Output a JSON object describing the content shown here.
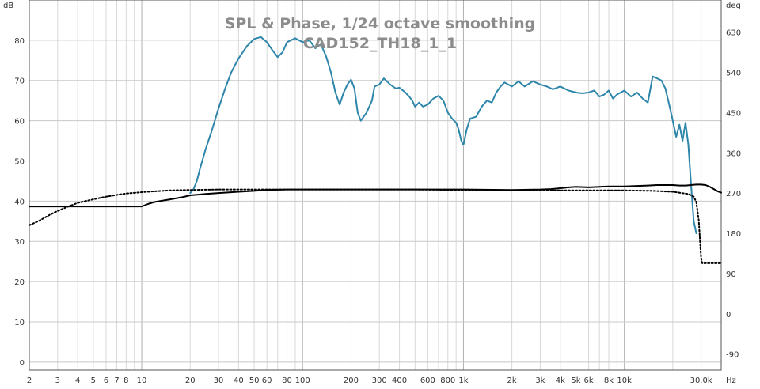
{
  "chart_data": {
    "type": "line",
    "title": "SPL & Phase, 1/24 octave smoothing",
    "subtitle": "CAD152_TH18_1_1",
    "left_unit": "dB",
    "right_unit": "deg",
    "x_unit_label": "Hz",
    "x_scale": "log",
    "xlim": [
      2,
      40000
    ],
    "ylim": [
      -2,
      90
    ],
    "ylim_right": [
      -126,
      702
    ],
    "grid": true,
    "x_ticks": [
      {
        "v": 2,
        "t": "2"
      },
      {
        "v": 3,
        "t": "3"
      },
      {
        "v": 4,
        "t": "4"
      },
      {
        "v": 5,
        "t": "5"
      },
      {
        "v": 6,
        "t": "6"
      },
      {
        "v": 7,
        "t": "7"
      },
      {
        "v": 8,
        "t": "8"
      },
      {
        "v": 10,
        "t": "10"
      },
      {
        "v": 20,
        "t": "20"
      },
      {
        "v": 30,
        "t": "30"
      },
      {
        "v": 40,
        "t": "40"
      },
      {
        "v": 50,
        "t": "50"
      },
      {
        "v": 60,
        "t": "60"
      },
      {
        "v": 80,
        "t": "80"
      },
      {
        "v": 100,
        "t": "100"
      },
      {
        "v": 200,
        "t": "200"
      },
      {
        "v": 300,
        "t": "300"
      },
      {
        "v": 400,
        "t": "400"
      },
      {
        "v": 600,
        "t": "600"
      },
      {
        "v": 800,
        "t": "800"
      },
      {
        "v": 1000,
        "t": "1k"
      },
      {
        "v": 2000,
        "t": "2k"
      },
      {
        "v": 3000,
        "t": "3k"
      },
      {
        "v": 4000,
        "t": "4k"
      },
      {
        "v": 5000,
        "t": "5k"
      },
      {
        "v": 6000,
        "t": "6k"
      },
      {
        "v": 8000,
        "t": "8k"
      },
      {
        "v": 10000,
        "t": "10k"
      },
      {
        "v": 30000,
        "t": "30.0k"
      }
    ],
    "y_ticks_left": [
      0,
      10,
      20,
      30,
      40,
      50,
      60,
      70,
      80
    ],
    "y_ticks_right": [
      -90,
      0,
      90,
      180,
      270,
      360,
      450,
      540,
      630
    ],
    "series": [
      {
        "axis": "left",
        "color": "#2e86ab",
        "style": "solid",
        "points": [
          [
            20,
            42.0
          ],
          [
            21,
            43.0
          ],
          [
            22,
            45.0
          ],
          [
            23,
            48.0
          ],
          [
            25,
            53.0
          ],
          [
            27,
            57.0
          ],
          [
            30,
            63.0
          ],
          [
            33,
            68.0
          ],
          [
            36,
            72.0
          ],
          [
            40,
            75.5
          ],
          [
            45,
            78.5
          ],
          [
            50,
            80.3
          ],
          [
            55,
            80.8
          ],
          [
            60,
            79.5
          ],
          [
            65,
            77.5
          ],
          [
            70,
            75.8
          ],
          [
            75,
            77.0
          ],
          [
            80,
            79.5
          ],
          [
            90,
            80.5
          ],
          [
            100,
            79.5
          ],
          [
            110,
            80.0
          ],
          [
            120,
            78.0
          ],
          [
            130,
            79.0
          ],
          [
            140,
            76.0
          ],
          [
            150,
            72.0
          ],
          [
            160,
            67.0
          ],
          [
            170,
            64.0
          ],
          [
            180,
            67.0
          ],
          [
            190,
            69.0
          ],
          [
            200,
            70.2
          ],
          [
            210,
            68.0
          ],
          [
            220,
            62.0
          ],
          [
            230,
            60.0
          ],
          [
            250,
            62.0
          ],
          [
            270,
            65.0
          ],
          [
            280,
            68.5
          ],
          [
            300,
            69.0
          ],
          [
            320,
            70.5
          ],
          [
            350,
            69.0
          ],
          [
            380,
            68.0
          ],
          [
            400,
            68.2
          ],
          [
            430,
            67.2
          ],
          [
            460,
            66.0
          ],
          [
            480,
            65.0
          ],
          [
            500,
            63.5
          ],
          [
            530,
            64.5
          ],
          [
            560,
            63.5
          ],
          [
            600,
            64.0
          ],
          [
            650,
            65.5
          ],
          [
            700,
            66.2
          ],
          [
            750,
            65.0
          ],
          [
            800,
            62.0
          ],
          [
            850,
            60.5
          ],
          [
            900,
            59.5
          ],
          [
            930,
            58.0
          ],
          [
            970,
            55.0
          ],
          [
            1000,
            54.0
          ],
          [
            1050,
            58.0
          ],
          [
            1100,
            60.5
          ],
          [
            1200,
            61.0
          ],
          [
            1300,
            63.5
          ],
          [
            1400,
            65.0
          ],
          [
            1500,
            64.5
          ],
          [
            1600,
            67.0
          ],
          [
            1700,
            68.5
          ],
          [
            1800,
            69.5
          ],
          [
            2000,
            68.5
          ],
          [
            2200,
            69.8
          ],
          [
            2400,
            68.5
          ],
          [
            2700,
            69.8
          ],
          [
            3000,
            69.0
          ],
          [
            3300,
            68.5
          ],
          [
            3600,
            67.8
          ],
          [
            4000,
            68.5
          ],
          [
            4500,
            67.5
          ],
          [
            5000,
            67.0
          ],
          [
            5500,
            66.8
          ],
          [
            6000,
            67.0
          ],
          [
            6500,
            67.5
          ],
          [
            7000,
            66.0
          ],
          [
            7500,
            66.5
          ],
          [
            8000,
            67.5
          ],
          [
            8500,
            65.5
          ],
          [
            9000,
            66.5
          ],
          [
            10000,
            67.5
          ],
          [
            11000,
            66.0
          ],
          [
            12000,
            67.0
          ],
          [
            13000,
            65.5
          ],
          [
            14000,
            64.5
          ],
          [
            15000,
            71.0
          ],
          [
            16000,
            70.5
          ],
          [
            17000,
            70.0
          ],
          [
            18000,
            68.0
          ],
          [
            19000,
            64.0
          ],
          [
            20000,
            60.0
          ],
          [
            21000,
            56.0
          ],
          [
            22000,
            59.0
          ],
          [
            23000,
            55.0
          ],
          [
            24000,
            59.5
          ],
          [
            25000,
            54.0
          ],
          [
            26000,
            44.0
          ],
          [
            27000,
            35.0
          ],
          [
            28000,
            32.0
          ]
        ]
      },
      {
        "axis": "right",
        "color": "#000000",
        "style": "solid",
        "points": [
          [
            2,
            240
          ],
          [
            3,
            240
          ],
          [
            5,
            240
          ],
          [
            8,
            240
          ],
          [
            10,
            240
          ],
          [
            11,
            246
          ],
          [
            12,
            250
          ],
          [
            15,
            256
          ],
          [
            18,
            261
          ],
          [
            20,
            265
          ],
          [
            25,
            268
          ],
          [
            30,
            270
          ],
          [
            40,
            273
          ],
          [
            50,
            275
          ],
          [
            60,
            277
          ],
          [
            80,
            278
          ],
          [
            100,
            278
          ],
          [
            200,
            278
          ],
          [
            300,
            278
          ],
          [
            500,
            278
          ],
          [
            800,
            278
          ],
          [
            1000,
            278
          ],
          [
            2000,
            277
          ],
          [
            3000,
            278
          ],
          [
            3500,
            279
          ],
          [
            4000,
            281
          ],
          [
            4500,
            283
          ],
          [
            5000,
            284
          ],
          [
            6000,
            283
          ],
          [
            7000,
            284
          ],
          [
            8000,
            285
          ],
          [
            10000,
            285
          ],
          [
            12000,
            286
          ],
          [
            14000,
            287
          ],
          [
            16000,
            288
          ],
          [
            18000,
            288
          ],
          [
            20000,
            288
          ],
          [
            22000,
            287
          ],
          [
            24000,
            287
          ],
          [
            26000,
            288
          ],
          [
            28000,
            289
          ],
          [
            30000,
            289
          ],
          [
            32000,
            288
          ],
          [
            34000,
            284
          ],
          [
            36000,
            279
          ],
          [
            38000,
            274
          ],
          [
            40000,
            271
          ]
        ]
      },
      {
        "axis": "right",
        "color": "#000000",
        "style": "dotted",
        "points": [
          [
            2,
            198
          ],
          [
            2.3,
            208
          ],
          [
            2.7,
            222
          ],
          [
            3,
            230
          ],
          [
            3.5,
            240
          ],
          [
            4,
            248
          ],
          [
            5,
            256
          ],
          [
            6,
            262
          ],
          [
            7,
            266
          ],
          [
            8,
            269
          ],
          [
            10,
            272
          ],
          [
            12,
            274
          ],
          [
            15,
            276
          ],
          [
            20,
            277
          ],
          [
            30,
            278
          ],
          [
            50,
            278
          ],
          [
            100,
            278
          ],
          [
            200,
            278
          ],
          [
            500,
            278
          ],
          [
            1000,
            277
          ],
          [
            2000,
            276
          ],
          [
            3000,
            276
          ],
          [
            5000,
            276
          ],
          [
            8000,
            276
          ],
          [
            10000,
            276
          ],
          [
            15000,
            275
          ],
          [
            20000,
            273
          ],
          [
            25000,
            268
          ],
          [
            27000,
            262
          ],
          [
            28000,
            250
          ],
          [
            29000,
            210
          ],
          [
            30000,
            125
          ],
          [
            30500,
            113
          ],
          [
            40000,
            113
          ]
        ]
      }
    ]
  }
}
